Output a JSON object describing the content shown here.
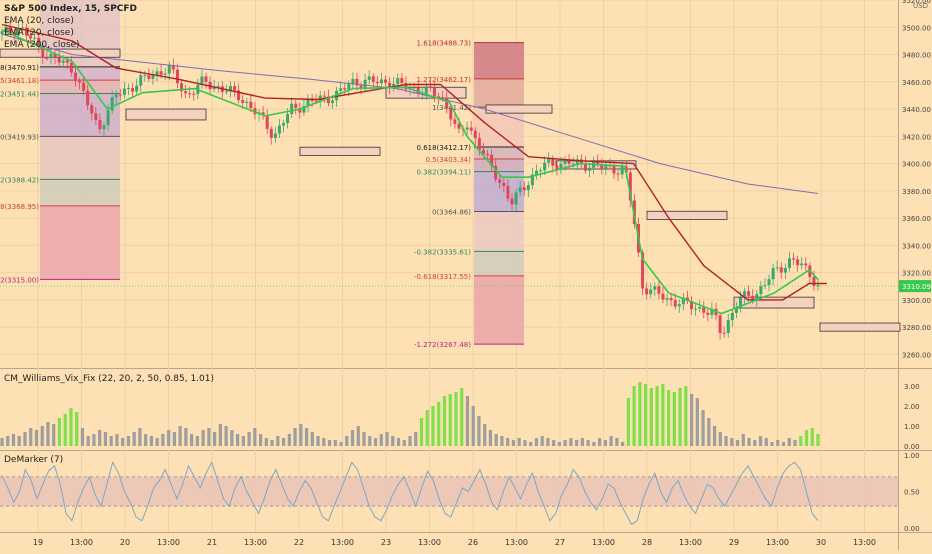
{
  "header": {
    "title": "S&P 500 Index, 15, SPCFD",
    "ema1": "EMA (20, close)",
    "ema2": "EMA (20, close)",
    "ema3": "EMA (200, close)"
  },
  "colors": {
    "background": "#fde0b3",
    "ema_fast": "#34c94a",
    "ema_mid": "#b02222",
    "ema_slow": "#7c6fb0",
    "candle_up": "#3aa76d",
    "candle_down": "#e0455a",
    "vix_high": "#7ee04b",
    "vix_low": "#9e9e9e",
    "demarker": "#7aa8c8",
    "price_label": "#34c94a"
  },
  "chart_data": [
    {
      "type": "candlestick",
      "currency": "USD",
      "ylim": [
        3250,
        3520
      ],
      "y_ticks": [
        "3520.00",
        "3500.00",
        "3480.00",
        "3460.00",
        "3440.00",
        "3420.00",
        "3400.00",
        "3380.00",
        "3360.00",
        "3340.00",
        "3320.00",
        "3300.00",
        "3280.00",
        "3260.00"
      ],
      "x_ticks": [
        "19",
        "13:00",
        "20",
        "13:00",
        "21",
        "13:00",
        "22",
        "13:00",
        "23",
        "13:00",
        "26",
        "13:00",
        "27",
        "13:00",
        "28",
        "13:00",
        "29",
        "13:00",
        "30",
        "13:00"
      ],
      "last_price": "3310.09",
      "last_price_value": 3310.09,
      "close_path": [
        [
          0,
          3495
        ],
        [
          2,
          3500
        ],
        [
          5,
          3480
        ],
        [
          8,
          3470
        ],
        [
          10,
          3440
        ],
        [
          11,
          3425
        ],
        [
          13,
          3450
        ],
        [
          17,
          3465
        ],
        [
          19,
          3470
        ],
        [
          21,
          3450
        ],
        [
          23,
          3460
        ],
        [
          27,
          3450
        ],
        [
          30,
          3430
        ],
        [
          31,
          3420
        ],
        [
          33,
          3440
        ],
        [
          35,
          3445
        ],
        [
          38,
          3450
        ],
        [
          40,
          3460
        ],
        [
          44,
          3460
        ],
        [
          47,
          3455
        ],
        [
          50,
          3450
        ],
        [
          51,
          3438
        ],
        [
          52,
          3420
        ],
        [
          53,
          3430
        ],
        [
          55,
          3405
        ],
        [
          57,
          3385
        ],
        [
          58,
          3370
        ],
        [
          60,
          3388
        ],
        [
          62,
          3400
        ],
        [
          66,
          3400
        ],
        [
          71,
          3395
        ],
        [
          72,
          3360
        ],
        [
          73,
          3310
        ],
        [
          76,
          3300
        ],
        [
          79,
          3295
        ],
        [
          81,
          3290
        ],
        [
          82,
          3275
        ],
        [
          84,
          3300
        ],
        [
          86,
          3305
        ],
        [
          88,
          3320
        ],
        [
          90,
          3330
        ],
        [
          92,
          3320
        ],
        [
          93,
          3310
        ]
      ],
      "ema_fast_path": [
        [
          0,
          3498
        ],
        [
          8,
          3475
        ],
        [
          12,
          3440
        ],
        [
          16,
          3452
        ],
        [
          22,
          3455
        ],
        [
          30,
          3435
        ],
        [
          34,
          3440
        ],
        [
          40,
          3455
        ],
        [
          46,
          3456
        ],
        [
          51,
          3445
        ],
        [
          53,
          3420
        ],
        [
          57,
          3390
        ],
        [
          60,
          3390
        ],
        [
          66,
          3400
        ],
        [
          71,
          3398
        ],
        [
          73,
          3330
        ],
        [
          76,
          3305
        ],
        [
          82,
          3290
        ],
        [
          84,
          3295
        ],
        [
          88,
          3305
        ],
        [
          92,
          3322
        ],
        [
          93,
          3315
        ]
      ],
      "ema_mid_path": [
        [
          0,
          3502
        ],
        [
          8,
          3490
        ],
        [
          13,
          3470
        ],
        [
          20,
          3462
        ],
        [
          30,
          3448
        ],
        [
          36,
          3447
        ],
        [
          46,
          3458
        ],
        [
          50,
          3458
        ],
        [
          55,
          3430
        ],
        [
          60,
          3405
        ],
        [
          66,
          3402
        ],
        [
          72,
          3400
        ],
        [
          76,
          3360
        ],
        [
          80,
          3325
        ],
        [
          85,
          3300
        ],
        [
          89,
          3300
        ],
        [
          92,
          3312
        ],
        [
          94,
          3312
        ]
      ],
      "ema_slow_path": [
        [
          0,
          3495
        ],
        [
          8,
          3480
        ],
        [
          15,
          3475
        ],
        [
          25,
          3468
        ],
        [
          35,
          3462
        ],
        [
          45,
          3455
        ],
        [
          55,
          3440
        ],
        [
          65,
          3420
        ],
        [
          75,
          3400
        ],
        [
          85,
          3385
        ],
        [
          93,
          3378
        ]
      ],
      "fib_levels": [
        {
          "label": "1.618(3488.73)",
          "value": 3488.73,
          "color": "#b0303a"
        },
        {
          "label": "1.272(3462.17)",
          "value": 3462.17,
          "color": "#d0302a"
        },
        {
          "label": "1(3441.42)",
          "value": 3441.42,
          "color": "#555555"
        },
        {
          "label": "0.618(3412.17)",
          "value": 3412.17,
          "color": "#222222"
        },
        {
          "label": "0.5(3403.34)",
          "value": 3403.34,
          "color": "#d04040"
        },
        {
          "label": "0.382(3394.11)",
          "value": 3394.11,
          "color": "#2e8b57"
        },
        {
          "label": "0(3364.86)",
          "value": 3364.86,
          "color": "#555555"
        },
        {
          "label": "-0.382(3335.61)",
          "value": 3335.61,
          "color": "#2e8b57"
        },
        {
          "label": "-0.618(3317.55)",
          "value": 3317.55,
          "color": "#d04040"
        },
        {
          "label": "-1.272(3267.48)",
          "value": 3267.48,
          "color": "#c02080"
        }
      ],
      "fib_levels_left": [
        {
          "label": "0.618(3470.91)",
          "value": 3470.91,
          "color": "#222222"
        },
        {
          "label": "0.5(3461.18)",
          "value": 3461.18,
          "color": "#d04040"
        },
        {
          "label": "0.382(3451.44)",
          "value": 3451.44,
          "color": "#2e8b57"
        },
        {
          "label": "0(3419.93)",
          "value": 3419.93,
          "color": "#555555"
        },
        {
          "label": "-0.382(3388.42)",
          "value": 3388.42,
          "color": "#2e8b57"
        },
        {
          "label": "-0.618(3368.95)",
          "value": 3368.95,
          "color": "#d04040"
        },
        {
          "label": "-1.272(3315.00)",
          "value": 3315.0,
          "color": "#c02080"
        }
      ]
    },
    {
      "type": "bar",
      "title": "CM_Williams_Vix_Fix (22, 20, 2, 50, 0.85, 1.01)",
      "ylim": [
        0,
        3.5
      ],
      "y_ticks": [
        "3.00",
        "2.00",
        "1.00",
        "0.00"
      ],
      "values": [
        0.4,
        0.5,
        0.6,
        0.5,
        0.7,
        0.9,
        0.8,
        1.0,
        1.2,
        1.1,
        1.4,
        1.6,
        1.9,
        1.7,
        0.9,
        0.5,
        0.6,
        0.8,
        0.7,
        0.5,
        0.6,
        0.4,
        0.5,
        0.7,
        0.9,
        0.6,
        0.5,
        0.4,
        0.6,
        0.8,
        0.7,
        1.0,
        0.9,
        0.6,
        0.5,
        0.8,
        0.9,
        0.7,
        1.1,
        1.0,
        0.8,
        0.6,
        0.5,
        0.7,
        0.9,
        0.6,
        0.4,
        0.3,
        0.5,
        0.4,
        0.6,
        0.9,
        1.1,
        0.9,
        0.7,
        0.5,
        0.4,
        0.3,
        0.3,
        0.2,
        0.5,
        0.8,
        1.0,
        0.7,
        0.5,
        0.4,
        0.6,
        0.7,
        0.5,
        0.4,
        0.3,
        0.5,
        0.7,
        1.4,
        1.8,
        2.0,
        2.2,
        2.5,
        2.6,
        2.7,
        2.9,
        2.5,
        2.0,
        1.5,
        1.1,
        0.8,
        0.6,
        0.5,
        0.4,
        0.3,
        0.4,
        0.3,
        0.2,
        0.4,
        0.5,
        0.4,
        0.3,
        0.2,
        0.3,
        0.4,
        0.3,
        0.4,
        0.3,
        0.2,
        0.4,
        0.3,
        0.5,
        0.4,
        0.2,
        2.4,
        3.0,
        3.2,
        3.1,
        2.9,
        3.0,
        3.1,
        2.8,
        2.7,
        2.9,
        3.0,
        2.6,
        2.4,
        1.8,
        1.4,
        1.0,
        0.7,
        0.5,
        0.4,
        0.3,
        0.6,
        0.4,
        0.3,
        0.5,
        0.4,
        0.2,
        0.3,
        0.2,
        0.4,
        0.3,
        0.5,
        0.8,
        0.9,
        0.6
      ],
      "high_flags": [
        0,
        0,
        0,
        0,
        0,
        0,
        0,
        0,
        0,
        0,
        1,
        1,
        1,
        1,
        0,
        0,
        0,
        0,
        0,
        0,
        0,
        0,
        0,
        0,
        0,
        0,
        0,
        0,
        0,
        0,
        0,
        0,
        0,
        0,
        0,
        0,
        0,
        0,
        0,
        0,
        0,
        0,
        0,
        0,
        0,
        0,
        0,
        0,
        0,
        0,
        0,
        0,
        0,
        0,
        0,
        0,
        0,
        0,
        0,
        0,
        0,
        0,
        0,
        0,
        0,
        0,
        0,
        0,
        0,
        0,
        0,
        0,
        0,
        1,
        1,
        1,
        1,
        1,
        1,
        1,
        1,
        0,
        0,
        0,
        0,
        0,
        0,
        0,
        0,
        0,
        0,
        0,
        0,
        0,
        0,
        0,
        0,
        0,
        0,
        0,
        0,
        0,
        0,
        0,
        0,
        0,
        0,
        0,
        0,
        1,
        1,
        1,
        1,
        1,
        1,
        1,
        1,
        1,
        1,
        1,
        0,
        0,
        0,
        0,
        0,
        0,
        0,
        0,
        0,
        0,
        0,
        0,
        0,
        0,
        0,
        0,
        0,
        0,
        0,
        1,
        1,
        1,
        1
      ]
    },
    {
      "type": "line",
      "title": "DeMarker (7)",
      "ylim": [
        0,
        1
      ],
      "y_ticks": [
        "1.00",
        "0.50",
        "0.00"
      ],
      "band": [
        0.3,
        0.7
      ],
      "values": [
        0.72,
        0.55,
        0.35,
        0.5,
        0.8,
        0.65,
        0.4,
        0.6,
        0.78,
        0.85,
        0.6,
        0.2,
        0.1,
        0.35,
        0.55,
        0.7,
        0.45,
        0.3,
        0.6,
        0.9,
        0.75,
        0.5,
        0.35,
        0.15,
        0.1,
        0.3,
        0.55,
        0.65,
        0.8,
        0.6,
        0.4,
        0.6,
        0.85,
        0.7,
        0.55,
        0.75,
        0.9,
        0.65,
        0.4,
        0.3,
        0.55,
        0.7,
        0.5,
        0.35,
        0.2,
        0.4,
        0.65,
        0.8,
        0.6,
        0.4,
        0.3,
        0.5,
        0.65,
        0.55,
        0.35,
        0.15,
        0.1,
        0.3,
        0.5,
        0.7,
        0.9,
        0.8,
        0.55,
        0.3,
        0.15,
        0.1,
        0.25,
        0.45,
        0.6,
        0.7,
        0.5,
        0.3,
        0.55,
        0.78,
        0.65,
        0.4,
        0.2,
        0.15,
        0.35,
        0.55,
        0.5,
        0.65,
        0.8,
        0.6,
        0.35,
        0.25,
        0.5,
        0.7,
        0.55,
        0.4,
        0.6,
        0.75,
        0.5,
        0.3,
        0.1,
        0.2,
        0.45,
        0.6,
        0.8,
        0.7,
        0.5,
        0.35,
        0.25,
        0.4,
        0.6,
        0.55,
        0.35,
        0.2,
        0.05,
        0.1,
        0.4,
        0.6,
        0.75,
        0.5,
        0.35,
        0.55,
        0.65,
        0.45,
        0.3,
        0.2,
        0.4,
        0.6,
        0.55,
        0.4,
        0.3,
        0.45,
        0.6,
        0.75,
        0.85,
        0.7,
        0.55,
        0.4,
        0.3,
        0.55,
        0.75,
        0.85,
        0.9,
        0.8,
        0.5,
        0.2,
        0.1
      ]
    }
  ]
}
